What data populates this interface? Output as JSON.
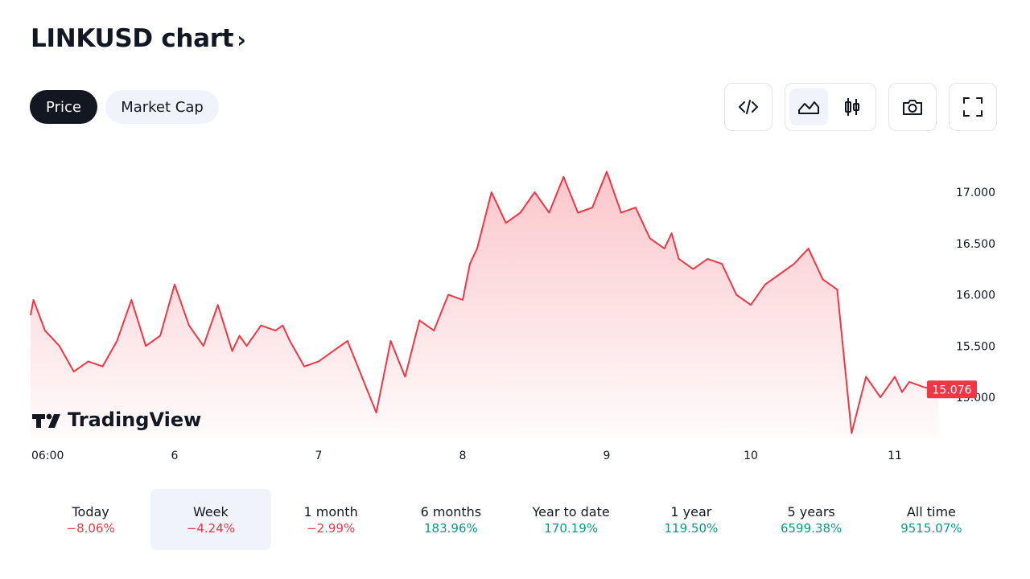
{
  "header": {
    "title": "LINKUSD chart",
    "chevron": "›"
  },
  "tabs": [
    {
      "label": "Price",
      "active": true
    },
    {
      "label": "Market Cap",
      "active": false
    }
  ],
  "toolbar": {
    "embed_icon": "code-icon",
    "area_icon": "area-chart-icon",
    "candle_icon": "candlestick-icon",
    "snapshot_icon": "camera-icon",
    "fullscreen_icon": "fullscreen-icon"
  },
  "watermark": "TradingView",
  "colors": {
    "line": "#f23645",
    "fill": "#f23645",
    "positive": "#089981",
    "negative": "#f23645",
    "text": "#131722",
    "axis_text": "#131722"
  },
  "chart_data": {
    "type": "area",
    "title": "",
    "xlabel": "",
    "ylabel": "",
    "x_ticks": [
      "06:00",
      "6",
      "7",
      "8",
      "9",
      "10",
      "11"
    ],
    "x_tick_positions": [
      0.13,
      1.0,
      2.0,
      3.0,
      4.0,
      5.0,
      6.0
    ],
    "y_ticks": [
      "15.000",
      "15.500",
      "16.000",
      "16.500",
      "17.000"
    ],
    "ylim": [
      14.6,
      17.4
    ],
    "last_value": "15.076",
    "grid": false,
    "series": [
      {
        "x": [
          0.0,
          0.02,
          0.1,
          0.2,
          0.3,
          0.4,
          0.5,
          0.6,
          0.7,
          0.8,
          0.9,
          1.0,
          1.1,
          1.15,
          1.2,
          1.3,
          1.4,
          1.45,
          1.5,
          1.6,
          1.7,
          1.75,
          1.8,
          1.9,
          2.0,
          2.05,
          2.1,
          2.2,
          2.3,
          2.4,
          2.5,
          2.6,
          2.7,
          2.8,
          2.9,
          3.0,
          3.05,
          3.1,
          3.2,
          3.3,
          3.4,
          3.5,
          3.6,
          3.7,
          3.8,
          3.9,
          4.0,
          4.1,
          4.2,
          4.3,
          4.4,
          4.45,
          4.5,
          4.6,
          4.7,
          4.8,
          4.9,
          5.0,
          5.1,
          5.2,
          5.3,
          5.4,
          5.5,
          5.6,
          5.7,
          5.8,
          5.9,
          6.0,
          6.05,
          6.1,
          6.2,
          6.25,
          6.3
        ],
        "y": [
          15.8,
          15.95,
          15.65,
          15.5,
          15.25,
          15.35,
          15.3,
          15.55,
          15.95,
          15.5,
          15.6,
          16.1,
          15.7,
          15.6,
          15.5,
          15.9,
          15.45,
          15.6,
          15.5,
          15.7,
          15.65,
          15.7,
          15.55,
          15.3,
          15.35,
          15.4,
          15.45,
          15.55,
          15.2,
          14.85,
          15.55,
          15.2,
          15.75,
          15.65,
          16.0,
          15.95,
          16.3,
          16.45,
          17.0,
          16.7,
          16.8,
          17.0,
          16.8,
          17.15,
          16.8,
          16.85,
          17.2,
          16.8,
          16.85,
          16.55,
          16.45,
          16.6,
          16.35,
          16.25,
          16.35,
          16.3,
          16.0,
          15.9,
          16.1,
          16.2,
          16.3,
          16.45,
          16.15,
          16.05,
          14.65,
          15.2,
          15.0,
          15.2,
          15.05,
          15.15,
          15.1,
          15.08,
          15.076
        ]
      }
    ]
  },
  "periods": [
    {
      "label": "Today",
      "value": "−8.06%",
      "sign": "neg",
      "active": false
    },
    {
      "label": "Week",
      "value": "−4.24%",
      "sign": "neg",
      "active": true
    },
    {
      "label": "1 month",
      "value": "−2.99%",
      "sign": "neg",
      "active": false
    },
    {
      "label": "6 months",
      "value": "183.96%",
      "sign": "pos",
      "active": false
    },
    {
      "label": "Year to date",
      "value": "170.19%",
      "sign": "pos",
      "active": false
    },
    {
      "label": "1 year",
      "value": "119.50%",
      "sign": "pos",
      "active": false
    },
    {
      "label": "5 years",
      "value": "6599.38%",
      "sign": "pos",
      "active": false
    },
    {
      "label": "All time",
      "value": "9515.07%",
      "sign": "pos",
      "active": false
    }
  ]
}
